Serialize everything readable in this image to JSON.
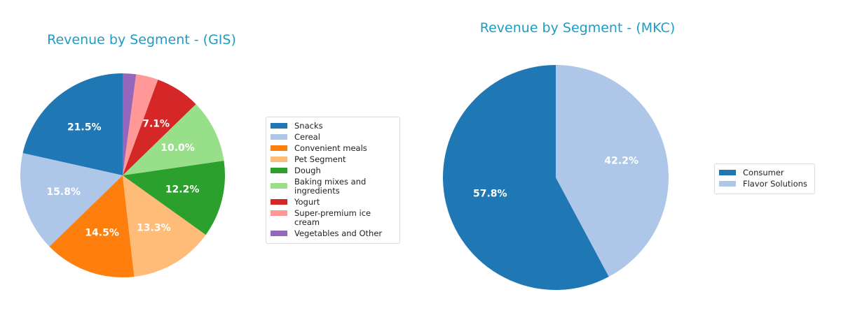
{
  "chart_data": [
    {
      "type": "pie",
      "title": "Revenue by Segment - (GIS)",
      "categories": [
        "Snacks",
        "Cereal",
        "Convenient meals",
        "Pet Segment",
        "Dough",
        "Baking mixes and ingredients",
        "Yogurt",
        "Super-premium ice cream",
        "Vegetables and Other"
      ],
      "values": [
        21.5,
        15.8,
        14.5,
        13.3,
        12.2,
        10.0,
        7.1,
        3.5,
        2.1
      ],
      "labels": [
        "21.5%",
        "15.8%",
        "14.5%",
        "13.3%",
        "12.2%",
        "10.0%",
        "7.1%",
        "",
        ""
      ],
      "colors": [
        "#1f77b4",
        "#aec7e8",
        "#ff7f0e",
        "#ffbb78",
        "#2ca02c",
        "#98df8a",
        "#d62728",
        "#ff9896",
        "#9467bd"
      ],
      "start_angle": 90,
      "direction": "counterclockwise",
      "legend_position": "right"
    },
    {
      "type": "pie",
      "title": "Revenue by Segment - (MKC)",
      "categories": [
        "Consumer",
        "Flavor Solutions"
      ],
      "values": [
        57.8,
        42.2
      ],
      "labels": [
        "57.8%",
        "42.2%"
      ],
      "colors": [
        "#1f77b4",
        "#aec7e8"
      ],
      "start_angle": 90,
      "direction": "counterclockwise",
      "legend_position": "right"
    }
  ],
  "gis": {
    "title": "Revenue by Segment - (GIS)",
    "legend": [
      "Snacks",
      "Cereal",
      "Convenient meals",
      "Pet Segment",
      "Dough",
      "Baking mixes and\ningredients",
      "Yogurt",
      "Super-premium ice cream",
      "Vegetables and Other"
    ]
  },
  "mkc": {
    "title": "Revenue by Segment - (MKC)",
    "legend": [
      "Consumer",
      "Flavor Solutions"
    ]
  }
}
